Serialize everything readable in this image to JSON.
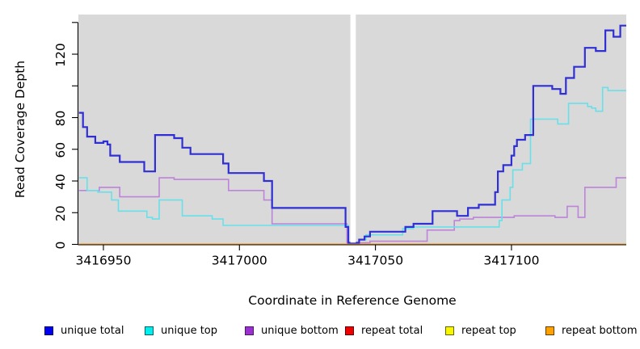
{
  "chart_data": {
    "type": "line",
    "subtype": "step",
    "title": "",
    "xlabel": "Coordinate in Reference Genome",
    "ylabel": "Read Coverage Depth",
    "xlim": [
      3416940.8,
      3417142.2
    ],
    "ylim": [
      0,
      145
    ],
    "panel_bg": "#d9d9d9",
    "grid": "off",
    "legend_position": "bottom",
    "x_ticks": [
      {
        "v": 3416950,
        "label": "3416950"
      },
      {
        "v": 3417000,
        "label": "3417000"
      },
      {
        "v": 3417050,
        "label": "3417050"
      },
      {
        "v": 3417100,
        "label": "3417100"
      }
    ],
    "y_ticks": [
      {
        "v": 0,
        "label": "0"
      },
      {
        "v": 20,
        "label": "20"
      },
      {
        "v": 40,
        "label": "40"
      },
      {
        "v": 60,
        "label": "60"
      },
      {
        "v": 80,
        "label": "80"
      },
      {
        "v": 100,
        "label": ""
      },
      {
        "v": 120,
        "label": "120"
      },
      {
        "v": 140,
        "label": ""
      }
    ],
    "gap": {
      "x0": 3417040.8,
      "x1": 3417042.8
    },
    "series": [
      {
        "name": "unique total",
        "color": "#2f2fd3",
        "legend_fill": "#0000ee",
        "legend_border": "#000066",
        "width": 2.2,
        "points": [
          [
            3416941,
            83
          ],
          [
            3416942.5,
            74
          ],
          [
            3416944,
            68
          ],
          [
            3416947,
            64
          ],
          [
            3416950,
            65
          ],
          [
            3416951.5,
            63
          ],
          [
            3416952.5,
            56
          ],
          [
            3416956,
            52
          ],
          [
            3416965,
            46
          ],
          [
            3416969,
            69
          ],
          [
            3416976,
            67
          ],
          [
            3416979,
            61
          ],
          [
            3416982,
            57
          ],
          [
            3416994,
            51
          ],
          [
            3416996,
            45
          ],
          [
            3417009,
            40
          ],
          [
            3417012,
            23
          ],
          [
            3417039,
            11
          ],
          [
            3417040,
            1
          ],
          [
            3417043,
            1
          ],
          [
            3417044,
            3
          ],
          [
            3417046,
            5
          ],
          [
            3417048,
            8
          ],
          [
            3417061,
            11
          ],
          [
            3417064,
            13
          ],
          [
            3417071,
            21
          ],
          [
            3417080,
            18
          ],
          [
            3417084,
            23
          ],
          [
            3417088,
            25
          ],
          [
            3417094,
            33
          ],
          [
            3417095,
            46
          ],
          [
            3417097,
            50
          ],
          [
            3417100,
            56
          ],
          [
            3417101,
            62
          ],
          [
            3417102,
            66
          ],
          [
            3417105,
            69
          ],
          [
            3417108,
            100
          ],
          [
            3417115,
            98
          ],
          [
            3417118,
            95
          ],
          [
            3417120,
            105
          ],
          [
            3417123,
            112
          ],
          [
            3417127,
            124
          ],
          [
            3417131,
            122
          ],
          [
            3417134.5,
            135
          ],
          [
            3417137.5,
            131
          ],
          [
            3417140,
            138
          ]
        ]
      },
      {
        "name": "unique top",
        "color": "#68e0e9",
        "legend_fill": "#00eeee",
        "legend_border": "#006666",
        "width": 1.6,
        "points": [
          [
            3416941,
            42
          ],
          [
            3416944,
            34
          ],
          [
            3416948,
            33
          ],
          [
            3416953,
            28
          ],
          [
            3416955.5,
            21
          ],
          [
            3416966,
            17
          ],
          [
            3416968,
            16
          ],
          [
            3416970.5,
            28
          ],
          [
            3416979,
            18
          ],
          [
            3416990,
            16
          ],
          [
            3416994,
            12
          ],
          [
            3417040,
            1
          ],
          [
            3417043,
            1
          ],
          [
            3417044,
            3
          ],
          [
            3417046.5,
            6
          ],
          [
            3417060,
            10
          ],
          [
            3417064,
            11
          ],
          [
            3417095.5,
            15
          ],
          [
            3417096.5,
            28
          ],
          [
            3417099.5,
            36
          ],
          [
            3417100.5,
            47
          ],
          [
            3417104,
            51
          ],
          [
            3417107,
            79
          ],
          [
            3417117,
            76
          ],
          [
            3417121,
            89
          ],
          [
            3417128,
            87
          ],
          [
            3417129.5,
            86
          ],
          [
            3417131,
            84
          ],
          [
            3417133.5,
            99
          ],
          [
            3417135.5,
            97
          ]
        ]
      },
      {
        "name": "unique bottom",
        "color": "#bd84d9",
        "legend_fill": "#9a30d0",
        "legend_border": "#4d1668",
        "width": 1.6,
        "points": [
          [
            3416941,
            34
          ],
          [
            3416948.5,
            36
          ],
          [
            3416956,
            30
          ],
          [
            3416970.5,
            42
          ],
          [
            3416976,
            41
          ],
          [
            3416996,
            34
          ],
          [
            3417009,
            28
          ],
          [
            3417012,
            13
          ],
          [
            3417039.5,
            1
          ],
          [
            3417048,
            2
          ],
          [
            3417069,
            9
          ],
          [
            3417079,
            15
          ],
          [
            3417081,
            16
          ],
          [
            3417086,
            17
          ],
          [
            3417101,
            18
          ],
          [
            3417116,
            17
          ],
          [
            3417120.5,
            24
          ],
          [
            3417124.5,
            17
          ],
          [
            3417127,
            36
          ],
          [
            3417138.5,
            42
          ]
        ]
      },
      {
        "name": "repeat total",
        "color": "#dd0000",
        "legend_fill": "#ee0000",
        "legend_border": "#660000",
        "width": 1.5,
        "points": [
          [
            3416941,
            0
          ]
        ]
      },
      {
        "name": "repeat top",
        "color": "#f0f000",
        "legend_fill": "#f6f600",
        "legend_border": "#666600",
        "width": 1.5,
        "points": [
          [
            3416941,
            0
          ]
        ]
      },
      {
        "name": "repeat bottom",
        "color": "#ffa021",
        "legend_fill": "#ffa200",
        "legend_border": "#663f00",
        "width": 2,
        "points": [
          [
            3416941,
            0
          ]
        ]
      }
    ],
    "draw_order": [
      "repeat total",
      "repeat top",
      "repeat bottom",
      "unique bottom",
      "unique top",
      "unique total"
    ]
  }
}
